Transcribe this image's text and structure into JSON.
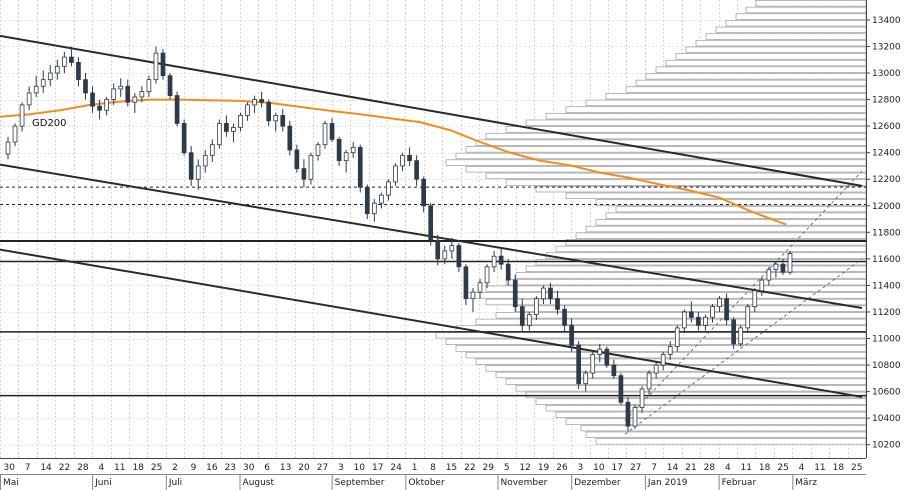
{
  "chart_data": {
    "type": "candlestick",
    "title": "",
    "xlabel": "",
    "ylabel": "",
    "ylim": [
      10100,
      13550
    ],
    "y_ticks": [
      10200,
      10400,
      10600,
      10800,
      11000,
      11200,
      11400,
      11600,
      11800,
      12000,
      12200,
      12400,
      12600,
      12800,
      13000,
      13200,
      13400
    ],
    "x_day_labels": [
      "30",
      "7",
      "14",
      "22",
      "28",
      "4",
      "11",
      "18",
      "25",
      "2",
      "9",
      "16",
      "23",
      "30",
      "6",
      "13",
      "20",
      "27",
      "3",
      "10",
      "17",
      "24",
      "1",
      "8",
      "15",
      "22",
      "29",
      "5",
      "12",
      "19",
      "26",
      "3",
      "10",
      "17",
      "27",
      "7",
      "14",
      "21",
      "28",
      "4",
      "11",
      "18",
      "25",
      "4",
      "11",
      "18",
      "25"
    ],
    "x_month_labels": [
      "Mai",
      "Juni",
      "Juli",
      "August",
      "September",
      "Oktober",
      "November",
      "Dezember",
      "Jan 2019",
      "Februar",
      "März"
    ],
    "moving_average": {
      "name": "GD200",
      "color": "#f28c1e",
      "points": [
        [
          0,
          12670
        ],
        [
          30,
          12690
        ],
        [
          60,
          12720
        ],
        [
          90,
          12760
        ],
        [
          120,
          12785
        ],
        [
          150,
          12800
        ],
        [
          180,
          12800
        ],
        [
          210,
          12795
        ],
        [
          240,
          12790
        ],
        [
          270,
          12775
        ],
        [
          300,
          12745
        ],
        [
          330,
          12715
        ],
        [
          360,
          12690
        ],
        [
          390,
          12660
        ],
        [
          420,
          12630
        ],
        [
          450,
          12570
        ],
        [
          480,
          12480
        ],
        [
          510,
          12400
        ],
        [
          540,
          12340
        ],
        [
          570,
          12305
        ],
        [
          600,
          12250
        ],
        [
          630,
          12210
        ],
        [
          660,
          12160
        ],
        [
          690,
          12115
        ],
        [
          720,
          12060
        ],
        [
          750,
          11960
        ],
        [
          786,
          11860
        ]
      ]
    },
    "trend_channel_upper": [
      [
        [
          0,
          13280
        ],
        [
          862,
          12150
        ]
      ],
      [
        [
          0,
          12310
        ],
        [
          862,
          11230
        ]
      ],
      [
        [
          0,
          11670
        ],
        [
          862,
          10560
        ]
      ]
    ],
    "support_resistance": [
      {
        "y": 11735,
        "style": "solid",
        "weight": 2
      },
      {
        "y": 11580,
        "style": "solid",
        "weight": 1.5
      },
      {
        "y": 11050,
        "style": "solid",
        "weight": 1.5
      },
      {
        "y": 10570,
        "style": "solid",
        "weight": 1.5
      },
      {
        "y": 12140,
        "style": "dashed",
        "weight": 1
      },
      {
        "y": 12010,
        "style": "dashed",
        "weight": 1
      }
    ],
    "dashed_channel": [
      [
        [
          625,
          10380
        ],
        [
          862,
          12260
        ]
      ],
      [
        [
          625,
          10280
        ],
        [
          862,
          11600
        ]
      ]
    ],
    "volume_profile": {
      "from": 10200,
      "to": 13550,
      "step": 50,
      "widths": [
        270,
        280,
        285,
        300,
        310,
        320,
        330,
        340,
        350,
        360,
        370,
        380,
        390,
        400,
        410,
        420,
        430,
        410,
        390,
        370,
        350,
        380,
        400,
        380,
        360,
        350,
        340,
        330,
        320,
        310,
        300,
        290,
        280,
        270,
        260,
        250,
        270,
        300,
        330,
        360,
        380,
        400,
        420,
        410,
        400,
        390,
        380,
        360,
        340,
        320,
        300,
        280,
        260,
        240,
        230,
        220,
        210,
        200,
        190,
        180,
        170,
        160,
        150,
        140,
        130,
        120,
        110,
        100,
        90
      ]
    },
    "candles": [
      [
        12390,
        12520,
        12350,
        12480
      ],
      [
        12480,
        12620,
        12450,
        12600
      ],
      [
        12600,
        12780,
        12560,
        12760
      ],
      [
        12760,
        12900,
        12720,
        12850
      ],
      [
        12850,
        12980,
        12820,
        12900
      ],
      [
        12900,
        13020,
        12850,
        12950
      ],
      [
        12950,
        13060,
        12900,
        13000
      ],
      [
        13000,
        13100,
        12950,
        13050
      ],
      [
        13050,
        13160,
        13000,
        13120
      ],
      [
        13120,
        13200,
        13050,
        13080
      ],
      [
        13080,
        13120,
        12900,
        12950
      ],
      [
        12950,
        13000,
        12800,
        12850
      ],
      [
        12850,
        12900,
        12700,
        12750
      ],
      [
        12750,
        12800,
        12650,
        12720
      ],
      [
        12720,
        12820,
        12680,
        12800
      ],
      [
        12800,
        12920,
        12760,
        12880
      ],
      [
        12880,
        12960,
        12820,
        12900
      ],
      [
        12900,
        12950,
        12750,
        12780
      ],
      [
        12780,
        12850,
        12700,
        12820
      ],
      [
        12820,
        12900,
        12780,
        12860
      ],
      [
        12860,
        12980,
        12820,
        12950
      ],
      [
        12950,
        13200,
        12920,
        13150
      ],
      [
        13150,
        13180,
        12950,
        12980
      ],
      [
        12980,
        13000,
        12800,
        12830
      ],
      [
        12830,
        12860,
        12600,
        12620
      ],
      [
        12620,
        12650,
        12380,
        12400
      ],
      [
        12400,
        12450,
        12150,
        12200
      ],
      [
        12200,
        12350,
        12120,
        12300
      ],
      [
        12300,
        12420,
        12250,
        12380
      ],
      [
        12380,
        12500,
        12330,
        12460
      ],
      [
        12460,
        12650,
        12430,
        12620
      ],
      [
        12620,
        12680,
        12520,
        12560
      ],
      [
        12560,
        12620,
        12480,
        12590
      ],
      [
        12590,
        12700,
        12560,
        12680
      ],
      [
        12680,
        12780,
        12640,
        12760
      ],
      [
        12760,
        12830,
        12700,
        12800
      ],
      [
        12800,
        12860,
        12740,
        12780
      ],
      [
        12780,
        12800,
        12600,
        12640
      ],
      [
        12640,
        12700,
        12560,
        12680
      ],
      [
        12680,
        12730,
        12560,
        12600
      ],
      [
        12600,
        12640,
        12380,
        12420
      ],
      [
        12420,
        12460,
        12250,
        12280
      ],
      [
        12280,
        12350,
        12140,
        12200
      ],
      [
        12200,
        12400,
        12160,
        12380
      ],
      [
        12380,
        12480,
        12340,
        12460
      ],
      [
        12460,
        12640,
        12430,
        12620
      ],
      [
        12620,
        12660,
        12480,
        12500
      ],
      [
        12500,
        12520,
        12300,
        12340
      ],
      [
        12340,
        12420,
        12250,
        12400
      ],
      [
        12400,
        12480,
        12360,
        12440
      ],
      [
        12440,
        12460,
        12100,
        12140
      ],
      [
        12140,
        12160,
        11900,
        11940
      ],
      [
        11940,
        12050,
        11880,
        12020
      ],
      [
        12020,
        12100,
        11980,
        12080
      ],
      [
        12080,
        12200,
        12040,
        12180
      ],
      [
        12180,
        12320,
        12150,
        12300
      ],
      [
        12300,
        12400,
        12260,
        12380
      ],
      [
        12380,
        12440,
        12300,
        12340
      ],
      [
        12340,
        12380,
        12150,
        12200
      ],
      [
        12200,
        12220,
        11950,
        12000
      ],
      [
        12000,
        12020,
        11700,
        11740
      ],
      [
        11740,
        11780,
        11550,
        11600
      ],
      [
        11600,
        11700,
        11560,
        11660
      ],
      [
        11660,
        11760,
        11600,
        11700
      ],
      [
        11700,
        11720,
        11500,
        11540
      ],
      [
        11540,
        11560,
        11250,
        11300
      ],
      [
        11300,
        11380,
        11200,
        11350
      ],
      [
        11350,
        11450,
        11300,
        11420
      ],
      [
        11420,
        11560,
        11380,
        11540
      ],
      [
        11540,
        11660,
        11500,
        11620
      ],
      [
        11620,
        11680,
        11520,
        11560
      ],
      [
        11560,
        11600,
        11400,
        11440
      ],
      [
        11440,
        11480,
        11200,
        11240
      ],
      [
        11240,
        11300,
        11050,
        11100
      ],
      [
        11100,
        11200,
        11060,
        11180
      ],
      [
        11180,
        11320,
        11140,
        11300
      ],
      [
        11300,
        11400,
        11260,
        11380
      ],
      [
        11380,
        11420,
        11260,
        11300
      ],
      [
        11300,
        11360,
        11180,
        11220
      ],
      [
        11220,
        11250,
        11050,
        11100
      ],
      [
        11100,
        11150,
        10900,
        10950
      ],
      [
        10950,
        10980,
        10620,
        10660
      ],
      [
        10660,
        10760,
        10600,
        10740
      ],
      [
        10740,
        10900,
        10700,
        10880
      ],
      [
        10880,
        10960,
        10820,
        10920
      ],
      [
        10920,
        10940,
        10780,
        10800
      ],
      [
        10800,
        10840,
        10700,
        10720
      ],
      [
        10720,
        10740,
        10500,
        10520
      ],
      [
        10520,
        10560,
        10300,
        10340
      ],
      [
        10340,
        10500,
        10320,
        10480
      ],
      [
        10480,
        10640,
        10440,
        10620
      ],
      [
        10620,
        10760,
        10580,
        10740
      ],
      [
        10740,
        10820,
        10700,
        10800
      ],
      [
        10800,
        10900,
        10760,
        10880
      ],
      [
        10880,
        10980,
        10840,
        10940
      ],
      [
        10940,
        11100,
        10900,
        11080
      ],
      [
        11080,
        11220,
        11040,
        11200
      ],
      [
        11200,
        11280,
        11120,
        11160
      ],
      [
        11160,
        11200,
        11060,
        11100
      ],
      [
        11100,
        11180,
        11060,
        11160
      ],
      [
        11160,
        11260,
        11120,
        11240
      ],
      [
        11240,
        11320,
        11200,
        11300
      ],
      [
        11300,
        11340,
        11100,
        11140
      ],
      [
        11140,
        11160,
        10920,
        10960
      ],
      [
        10960,
        11100,
        10940,
        11080
      ],
      [
        11080,
        11260,
        11050,
        11240
      ],
      [
        11240,
        11380,
        11200,
        11360
      ],
      [
        11360,
        11460,
        11320,
        11440
      ],
      [
        11440,
        11540,
        11400,
        11520
      ],
      [
        11520,
        11580,
        11460,
        11560
      ],
      [
        11560,
        11600,
        11480,
        11500
      ],
      [
        11500,
        11660,
        11480,
        11640
      ]
    ]
  }
}
